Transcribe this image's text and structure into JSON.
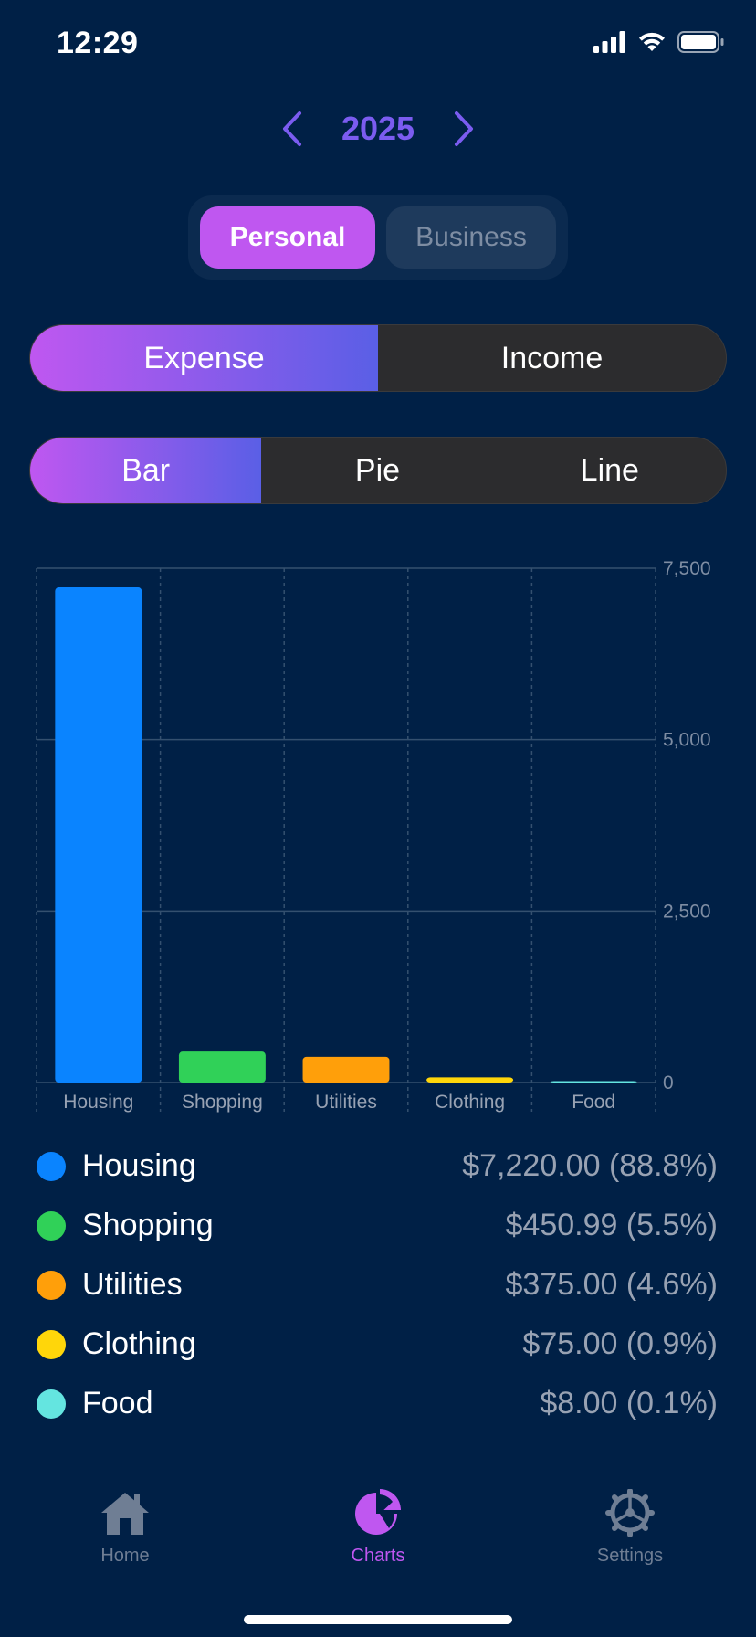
{
  "status_bar": {
    "time": "12:29"
  },
  "header": {
    "year": "2025"
  },
  "account_toggle": {
    "personal": "Personal",
    "business": "Business",
    "selected": "Personal"
  },
  "type_toggle": {
    "expense": "Expense",
    "income": "Income",
    "selected": "Expense"
  },
  "chart_toggle": {
    "bar": "Bar",
    "pie": "Pie",
    "line": "Line",
    "selected": "Bar"
  },
  "chart_data": {
    "type": "bar",
    "categories": [
      "Housing",
      "Shopping",
      "Utilities",
      "Clothing",
      "Food"
    ],
    "values": [
      7220.0,
      450.99,
      375.0,
      75.0,
      8.0
    ],
    "colors": [
      "#0A84FF",
      "#30D158",
      "#FF9F0A",
      "#FFD60A",
      "#64E5E0"
    ],
    "ylim": [
      0,
      7500
    ],
    "yticks": [
      0,
      2500,
      5000,
      7500
    ],
    "ytick_labels": [
      "0",
      "2,500",
      "5,000",
      "7,500"
    ],
    "grid": true,
    "y_axis_position": "right"
  },
  "legend": [
    {
      "name": "Housing",
      "value": "$7,220.00 (88.8%)",
      "color": "#0A84FF"
    },
    {
      "name": "Shopping",
      "value": "$450.99 (5.5%)",
      "color": "#30D158"
    },
    {
      "name": "Utilities",
      "value": "$375.00 (4.6%)",
      "color": "#FF9F0A"
    },
    {
      "name": "Clothing",
      "value": "$75.00 (0.9%)",
      "color": "#FFD60A"
    },
    {
      "name": "Food",
      "value": "$8.00 (0.1%)",
      "color": "#64E5E0"
    }
  ],
  "tabbar": {
    "home": {
      "label": "Home",
      "icon": "house-icon"
    },
    "charts": {
      "label": "Charts",
      "icon": "pie-chart-icon"
    },
    "settings": {
      "label": "Settings",
      "icon": "gear-icon"
    },
    "active": "Charts"
  }
}
